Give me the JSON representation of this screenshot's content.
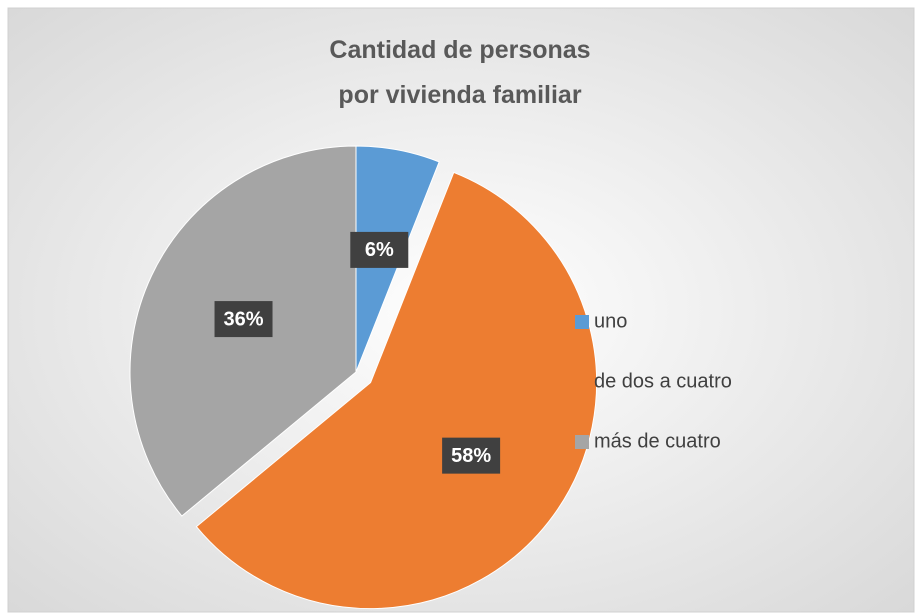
{
  "chart_data": {
    "type": "pie",
    "title": [
      "Cantidad de personas",
      "por vivienda familiar"
    ],
    "categories": [
      "uno",
      "de dos a cuatro",
      "más de cuatro"
    ],
    "values": [
      6,
      58,
      36
    ],
    "value_labels": [
      "6%",
      "58%",
      "36%"
    ],
    "colors": [
      "#5b9bd5",
      "#ed7d31",
      "#a5a5a5"
    ],
    "legend": "right"
  }
}
